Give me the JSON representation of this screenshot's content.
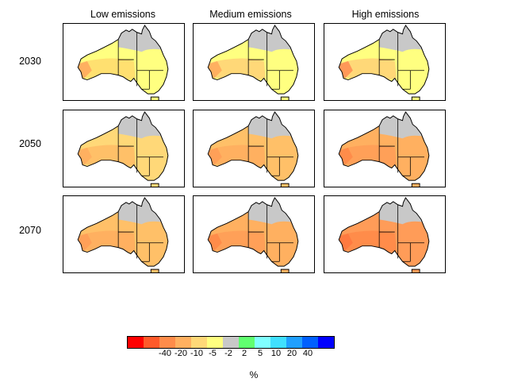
{
  "columns": [
    "Low emissions",
    "Medium emissions",
    "High emissions"
  ],
  "rows": [
    "2030",
    "2050",
    "2070"
  ],
  "colorbar": {
    "colors": [
      "#ff0000",
      "#ff5a2a",
      "#ff8c4a",
      "#ffb060",
      "#ffd878",
      "#ffff80",
      "#c8c8c8",
      "#60ff70",
      "#80ffff",
      "#40e0ff",
      "#20a0ff",
      "#0060ff",
      "#0000ff"
    ],
    "ticks": [
      "-40",
      "-20",
      "-10",
      "-5",
      "-2",
      "2",
      "5",
      "10",
      "20",
      "40"
    ],
    "unit": "%"
  },
  "panels": [
    {
      "base": "#ffff80",
      "warm": "#ffe070",
      "cool": "#ffb060"
    },
    {
      "base": "#ffff80",
      "warm": "#ffd878",
      "cool": "#ffb060"
    },
    {
      "base": "#ffff80",
      "warm": "#ffd878",
      "cool": "#ff9858"
    },
    {
      "base": "#ffd878",
      "warm": "#ffc068",
      "cool": "#ffb060"
    },
    {
      "base": "#ffc068",
      "warm": "#ffb060",
      "cool": "#ffa058"
    },
    {
      "base": "#ffb060",
      "warm": "#ffa058",
      "cool": "#ff8c4a"
    },
    {
      "base": "#ffc068",
      "warm": "#ffb060",
      "cool": "#ffa058"
    },
    {
      "base": "#ffb060",
      "warm": "#ffa058",
      "cool": "#ff8c4a"
    },
    {
      "base": "#ff9c58",
      "warm": "#ff8c4a",
      "cool": "#ff7a40"
    }
  ]
}
